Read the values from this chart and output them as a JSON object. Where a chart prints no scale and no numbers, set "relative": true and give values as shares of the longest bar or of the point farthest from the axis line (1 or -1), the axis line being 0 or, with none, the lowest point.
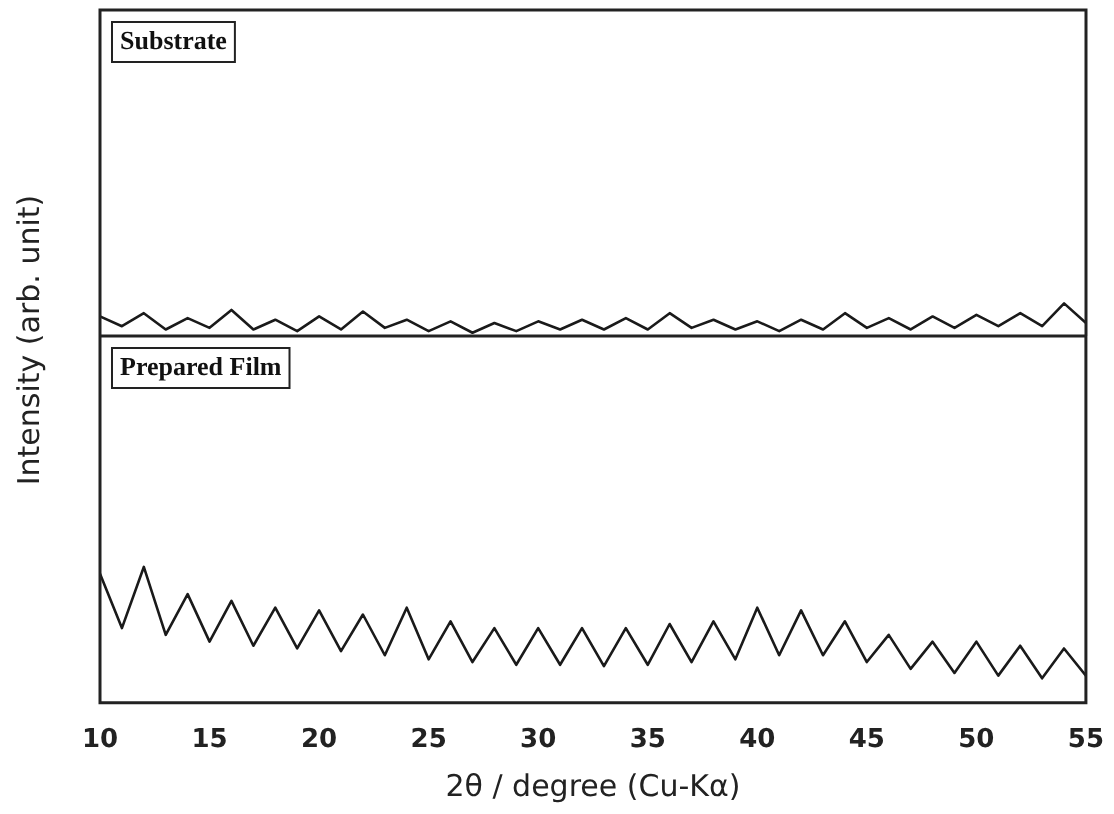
{
  "chart_data": [
    {
      "type": "line",
      "relative": true,
      "ylabel": "Intensity (arb. unit)",
      "annotations": [
        "Substrate"
      ],
      "xlim": [
        10,
        55
      ],
      "xticks": [
        10,
        15,
        20,
        25,
        30,
        35,
        40,
        45,
        50,
        55
      ],
      "tick_labels": false,
      "marker": "none",
      "x": [
        10,
        11,
        12,
        13,
        14,
        15,
        16,
        17,
        18,
        19,
        20,
        21,
        22,
        23,
        24,
        25,
        26,
        27,
        28,
        29,
        30,
        31,
        32,
        33,
        34,
        35,
        36,
        37,
        38,
        39,
        40,
        41,
        42,
        43,
        44,
        45,
        46,
        47,
        48,
        49,
        50,
        51,
        52,
        53,
        54,
        55
      ],
      "series": [
        {
          "color": "#1a1a1a",
          "values": [
            0.6,
            0.3,
            0.7,
            0.2,
            0.55,
            0.25,
            0.8,
            0.2,
            0.5,
            0.15,
            0.6,
            0.2,
            0.75,
            0.25,
            0.5,
            0.15,
            0.45,
            0.1,
            0.4,
            0.15,
            0.45,
            0.2,
            0.5,
            0.2,
            0.55,
            0.2,
            0.7,
            0.25,
            0.5,
            0.2,
            0.45,
            0.15,
            0.5,
            0.2,
            0.7,
            0.25,
            0.55,
            0.2,
            0.6,
            0.25,
            0.65,
            0.3,
            0.7,
            0.3,
            1,
            0.4
          ]
        }
      ]
    },
    {
      "type": "line",
      "relative": true,
      "xlabel": "2θ / degree (Cu-Kα)",
      "annotations": [
        "Prepared Film"
      ],
      "xlim": [
        10,
        55
      ],
      "xticks": [
        10,
        15,
        20,
        25,
        30,
        35,
        40,
        45,
        50,
        55
      ],
      "tick_labels": "x",
      "marker": "none",
      "x": [
        10,
        11,
        12,
        13,
        14,
        15,
        16,
        17,
        18,
        19,
        20,
        21,
        22,
        23,
        24,
        25,
        26,
        27,
        28,
        29,
        30,
        31,
        32,
        33,
        34,
        35,
        36,
        37,
        38,
        39,
        40,
        41,
        42,
        43,
        44,
        45,
        46,
        47,
        48,
        49,
        50,
        51,
        52,
        53,
        54,
        55
      ],
      "series": [
        {
          "color": "#1a1a1a",
          "values": [
            0.95,
            0.55,
            1,
            0.5,
            0.8,
            0.45,
            0.75,
            0.42,
            0.7,
            0.4,
            0.68,
            0.38,
            0.65,
            0.35,
            0.7,
            0.32,
            0.6,
            0.3,
            0.55,
            0.28,
            0.55,
            0.28,
            0.55,
            0.27,
            0.55,
            0.28,
            0.58,
            0.3,
            0.6,
            0.32,
            0.7,
            0.35,
            0.68,
            0.35,
            0.6,
            0.3,
            0.5,
            0.25,
            0.45,
            0.22,
            0.45,
            0.2,
            0.42,
            0.18,
            0.4,
            0.2
          ]
        }
      ]
    }
  ]
}
